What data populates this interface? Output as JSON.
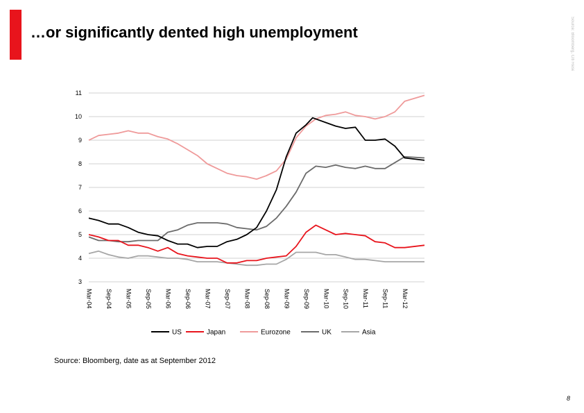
{
  "header": {
    "title": "…or significantly dented high unemployment",
    "vertical_note": "Source: Bloomberg, Citi Research",
    "accent_color": "#e8141c"
  },
  "footer": {
    "source": "Source: Bloomberg, date as at September 2012",
    "page_number": "8"
  },
  "chart_data": {
    "type": "line",
    "title": "",
    "xlabel": "",
    "ylabel": "",
    "ylim": [
      3,
      11
    ],
    "yticks": [
      3,
      4,
      5,
      6,
      7,
      8,
      9,
      10,
      11
    ],
    "grid": true,
    "legend_position": "bottom",
    "categories": [
      "Mar-04",
      "Sep-04",
      "Mar-05",
      "Sep-05",
      "Mar-06",
      "Sep-06",
      "Mar-07",
      "Sep-07",
      "Mar-08",
      "Sep-08",
      "Mar-09",
      "Sep-09",
      "Mar-10",
      "Sep-10",
      "Mar-11",
      "Sep-11",
      "Mar-12"
    ],
    "x_start": "Mar-04",
    "x_end": "Sep-12",
    "series": [
      {
        "name": "US",
        "color": "#000000",
        "points": [
          [
            "Mar-04",
            5.7
          ],
          [
            "Jun-04",
            5.6
          ],
          [
            "Sep-04",
            5.45
          ],
          [
            "Dec-04",
            5.45
          ],
          [
            "Mar-05",
            5.3
          ],
          [
            "Jun-05",
            5.1
          ],
          [
            "Sep-05",
            5.0
          ],
          [
            "Dec-05",
            4.95
          ],
          [
            "Mar-06",
            4.75
          ],
          [
            "Jun-06",
            4.6
          ],
          [
            "Sep-06",
            4.6
          ],
          [
            "Dec-06",
            4.45
          ],
          [
            "Mar-07",
            4.5
          ],
          [
            "Jun-07",
            4.5
          ],
          [
            "Sep-07",
            4.7
          ],
          [
            "Dec-07",
            4.8
          ],
          [
            "Mar-08",
            5.0
          ],
          [
            "Jun-08",
            5.3
          ],
          [
            "Sep-08",
            6.0
          ],
          [
            "Dec-08",
            6.9
          ],
          [
            "Mar-09",
            8.3
          ],
          [
            "Jun-09",
            9.3
          ],
          [
            "Sep-09",
            9.65
          ],
          [
            "Nov-09",
            9.95
          ],
          [
            "Mar-10",
            9.75
          ],
          [
            "Jun-10",
            9.6
          ],
          [
            "Sep-10",
            9.5
          ],
          [
            "Dec-10",
            9.55
          ],
          [
            "Mar-11",
            9.0
          ],
          [
            "Jun-11",
            9.0
          ],
          [
            "Sep-11",
            9.05
          ],
          [
            "Dec-11",
            8.75
          ],
          [
            "Mar-12",
            8.25
          ],
          [
            "Sep-12",
            8.15
          ]
        ]
      },
      {
        "name": "Japan",
        "color": "#e8141c",
        "points": [
          [
            "Mar-04",
            5.0
          ],
          [
            "Jun-04",
            4.9
          ],
          [
            "Sep-04",
            4.75
          ],
          [
            "Dec-04",
            4.75
          ],
          [
            "Mar-05",
            4.55
          ],
          [
            "Jun-05",
            4.55
          ],
          [
            "Sep-05",
            4.45
          ],
          [
            "Dec-05",
            4.3
          ],
          [
            "Mar-06",
            4.45
          ],
          [
            "Jun-06",
            4.2
          ],
          [
            "Sep-06",
            4.1
          ],
          [
            "Dec-06",
            4.05
          ],
          [
            "Mar-07",
            4.0
          ],
          [
            "Jun-07",
            4.0
          ],
          [
            "Sep-07",
            3.8
          ],
          [
            "Dec-07",
            3.8
          ],
          [
            "Mar-08",
            3.9
          ],
          [
            "Jun-08",
            3.9
          ],
          [
            "Sep-08",
            4.0
          ],
          [
            "Dec-08",
            4.05
          ],
          [
            "Mar-09",
            4.1
          ],
          [
            "Jun-09",
            4.5
          ],
          [
            "Sep-09",
            5.1
          ],
          [
            "Dec-09",
            5.4
          ],
          [
            "Mar-10",
            5.2
          ],
          [
            "Jun-10",
            5.0
          ],
          [
            "Sep-10",
            5.05
          ],
          [
            "Dec-10",
            5.0
          ],
          [
            "Mar-11",
            4.95
          ],
          [
            "Jun-11",
            4.7
          ],
          [
            "Sep-11",
            4.65
          ],
          [
            "Dec-11",
            4.45
          ],
          [
            "Mar-12",
            4.45
          ],
          [
            "Sep-12",
            4.55
          ]
        ]
      },
      {
        "name": "Eurozone",
        "color": "#ef9a9a",
        "points": [
          [
            "Mar-04",
            9.0
          ],
          [
            "Jun-04",
            9.2
          ],
          [
            "Sep-04",
            9.25
          ],
          [
            "Dec-04",
            9.3
          ],
          [
            "Mar-05",
            9.4
          ],
          [
            "Jun-05",
            9.3
          ],
          [
            "Sep-05",
            9.3
          ],
          [
            "Dec-05",
            9.15
          ],
          [
            "Mar-06",
            9.05
          ],
          [
            "Jun-06",
            8.85
          ],
          [
            "Sep-06",
            8.6
          ],
          [
            "Dec-06",
            8.35
          ],
          [
            "Mar-07",
            8.0
          ],
          [
            "Jun-07",
            7.8
          ],
          [
            "Sep-07",
            7.6
          ],
          [
            "Dec-07",
            7.5
          ],
          [
            "Mar-08",
            7.45
          ],
          [
            "Jun-08",
            7.35
          ],
          [
            "Sep-08",
            7.5
          ],
          [
            "Dec-08",
            7.7
          ],
          [
            "Mar-09",
            8.2
          ],
          [
            "Jun-09",
            9.1
          ],
          [
            "Sep-09",
            9.6
          ],
          [
            "Dec-09",
            9.9
          ],
          [
            "Mar-10",
            10.05
          ],
          [
            "Jun-10",
            10.1
          ],
          [
            "Sep-10",
            10.2
          ],
          [
            "Dec-10",
            10.05
          ],
          [
            "Mar-11",
            10.0
          ],
          [
            "Jun-11",
            9.9
          ],
          [
            "Sep-11",
            10.0
          ],
          [
            "Dec-11",
            10.2
          ],
          [
            "Mar-12",
            10.65
          ],
          [
            "Sep-12",
            10.9
          ]
        ]
      },
      {
        "name": "UK",
        "color": "#6b6b6b",
        "points": [
          [
            "Mar-04",
            4.9
          ],
          [
            "Jun-04",
            4.75
          ],
          [
            "Sep-04",
            4.75
          ],
          [
            "Dec-04",
            4.7
          ],
          [
            "Mar-05",
            4.7
          ],
          [
            "Jun-05",
            4.75
          ],
          [
            "Sep-05",
            4.75
          ],
          [
            "Dec-05",
            4.75
          ],
          [
            "Mar-06",
            5.1
          ],
          [
            "Jun-06",
            5.2
          ],
          [
            "Sep-06",
            5.4
          ],
          [
            "Dec-06",
            5.5
          ],
          [
            "Mar-07",
            5.5
          ],
          [
            "Jun-07",
            5.5
          ],
          [
            "Sep-07",
            5.45
          ],
          [
            "Dec-07",
            5.3
          ],
          [
            "Mar-08",
            5.25
          ],
          [
            "Jun-08",
            5.2
          ],
          [
            "Sep-08",
            5.35
          ],
          [
            "Dec-08",
            5.7
          ],
          [
            "Mar-09",
            6.2
          ],
          [
            "Jun-09",
            6.8
          ],
          [
            "Sep-09",
            7.6
          ],
          [
            "Dec-09",
            7.9
          ],
          [
            "Mar-10",
            7.85
          ],
          [
            "Jun-10",
            7.95
          ],
          [
            "Sep-10",
            7.85
          ],
          [
            "Dec-10",
            7.8
          ],
          [
            "Mar-11",
            7.9
          ],
          [
            "Jun-11",
            7.8
          ],
          [
            "Sep-11",
            7.8
          ],
          [
            "Dec-11",
            8.05
          ],
          [
            "Mar-12",
            8.3
          ],
          [
            "Sep-12",
            8.25
          ]
        ]
      },
      {
        "name": "Asia",
        "color": "#a6a6a6",
        "points": [
          [
            "Mar-04",
            4.2
          ],
          [
            "Jun-04",
            4.3
          ],
          [
            "Sep-04",
            4.15
          ],
          [
            "Dec-04",
            4.05
          ],
          [
            "Mar-05",
            4.0
          ],
          [
            "Jun-05",
            4.1
          ],
          [
            "Sep-05",
            4.1
          ],
          [
            "Dec-05",
            4.05
          ],
          [
            "Mar-06",
            4.0
          ],
          [
            "Jun-06",
            4.0
          ],
          [
            "Sep-06",
            3.95
          ],
          [
            "Dec-06",
            3.85
          ],
          [
            "Mar-07",
            3.85
          ],
          [
            "Jun-07",
            3.85
          ],
          [
            "Sep-07",
            3.8
          ],
          [
            "Dec-07",
            3.75
          ],
          [
            "Mar-08",
            3.7
          ],
          [
            "Jun-08",
            3.7
          ],
          [
            "Sep-08",
            3.75
          ],
          [
            "Dec-08",
            3.75
          ],
          [
            "Mar-09",
            3.95
          ],
          [
            "Jun-09",
            4.25
          ],
          [
            "Sep-09",
            4.25
          ],
          [
            "Dec-09",
            4.25
          ],
          [
            "Mar-10",
            4.15
          ],
          [
            "Jun-10",
            4.15
          ],
          [
            "Sep-10",
            4.05
          ],
          [
            "Dec-10",
            3.95
          ],
          [
            "Mar-11",
            3.95
          ],
          [
            "Jun-11",
            3.9
          ],
          [
            "Sep-11",
            3.85
          ],
          [
            "Dec-11",
            3.85
          ],
          [
            "Mar-12",
            3.85
          ],
          [
            "Sep-12",
            3.85
          ]
        ]
      }
    ]
  }
}
